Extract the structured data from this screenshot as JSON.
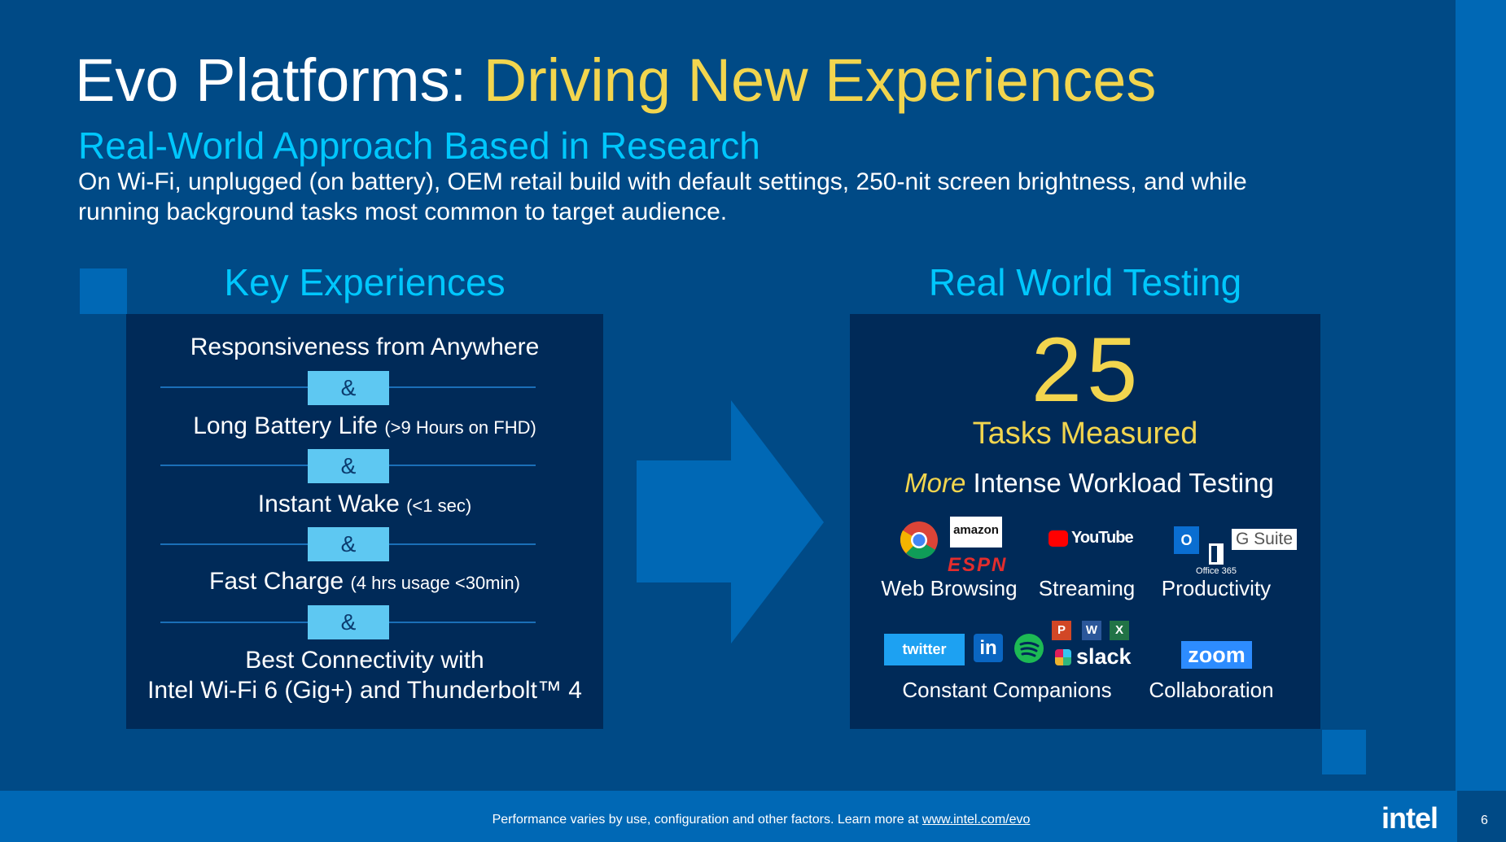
{
  "header": {
    "title_lead": "Evo Platforms:",
    "title_accent": "Driving New Experiences",
    "subtitle": "Real-World Approach Based in Research",
    "description": [
      "On Wi-Fi, unplugged (on battery), OEM retail build with default settings, 250-nit screen brightness, and while",
      "running background tasks most common to target audience."
    ]
  },
  "left": {
    "heading": "Key Experiences",
    "items": [
      {
        "text": "Responsiveness from Anywhere"
      },
      {
        "text": "Long Battery Life",
        "note": "(>9 Hours on FHD)"
      },
      {
        "text": "Instant Wake",
        "note": "(<1 sec)"
      },
      {
        "text": "Fast Charge",
        "note": "(4 hrs usage <30min)"
      },
      {
        "lines": [
          "Best Connectivity with",
          "Intel Wi-Fi 6 (Gig+) and Thunderbolt™ 4"
        ]
      }
    ],
    "connectors": [
      "&",
      "&",
      "&",
      "&"
    ]
  },
  "right": {
    "heading": "Real World Testing",
    "count": "25",
    "count_label": "Tasks Measured",
    "workload_emphasis": "More",
    "workload_rest": "Intense Workload Testing",
    "categories": [
      {
        "label": "Web Browsing",
        "logos": [
          "amazon",
          "ESPN"
        ]
      },
      {
        "label": "Streaming",
        "logos": [
          "YouTube"
        ]
      },
      {
        "label": "Productivity",
        "logos": [
          "O",
          "Office 365",
          "G Suite"
        ]
      },
      {
        "label": "Constant Companions",
        "logos": [
          "twitter",
          "in",
          "P",
          "W",
          "X",
          "slack"
        ]
      },
      {
        "label": "Collaboration",
        "logos": [
          "zoom"
        ]
      }
    ]
  },
  "footer": {
    "text": "Performance varies by use, configuration and other factors.  Learn more at",
    "link": "www.intel.com/evo",
    "brand": "intel",
    "page": "6"
  }
}
